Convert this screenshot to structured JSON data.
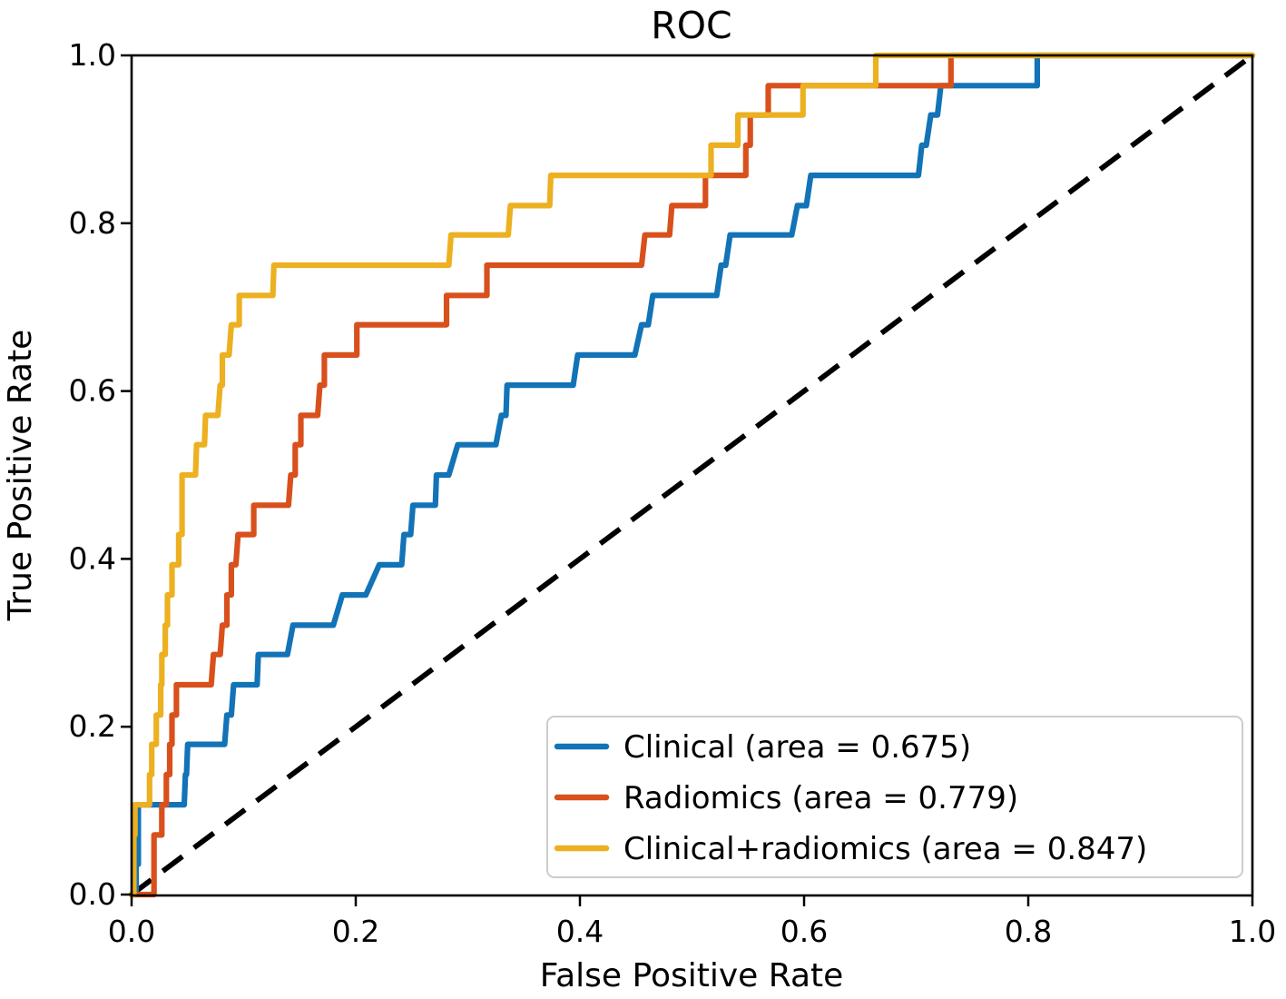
{
  "chart_data": {
    "type": "line",
    "subtype": "roc-step-curves",
    "title": "ROC",
    "xlabel": "False Positive Rate",
    "ylabel": "True Positive Rate",
    "xlim": [
      0.0,
      1.0
    ],
    "ylim": [
      0.0,
      1.0
    ],
    "grid": false,
    "legend_position": "lower right",
    "x_ticks": {
      "values": [
        0.0,
        0.2,
        0.4,
        0.6,
        0.8,
        1.0
      ],
      "labels": [
        "0.0",
        "0.2",
        "0.4",
        "0.6",
        "0.8",
        "1.0"
      ]
    },
    "y_ticks": {
      "values": [
        0.0,
        0.2,
        0.4,
        0.6,
        0.8,
        1.0
      ],
      "labels": [
        "0.0",
        "0.2",
        "0.4",
        "0.6",
        "0.8",
        "1.0"
      ]
    },
    "colors": {
      "axes": "#000000",
      "legend_border": "#cccccc",
      "reference": "#000000"
    },
    "reference_line": {
      "style": "dashed",
      "color": "#000000",
      "from": [
        0,
        0
      ],
      "to": [
        1,
        1
      ]
    },
    "series": [
      {
        "name": "Clinical (area = 0.675)",
        "auc": 0.675,
        "color": "#1273b7",
        "points": [
          [
            0,
            0
          ],
          [
            0.004,
            0
          ],
          [
            0.004,
            0.036
          ],
          [
            0.006,
            0.036
          ],
          [
            0.006,
            0.107
          ],
          [
            0.047,
            0.107
          ],
          [
            0.048,
            0.143
          ],
          [
            0.049,
            0.143
          ],
          [
            0.05,
            0.179
          ],
          [
            0.083,
            0.179
          ],
          [
            0.085,
            0.214
          ],
          [
            0.089,
            0.214
          ],
          [
            0.091,
            0.25
          ],
          [
            0.112,
            0.25
          ],
          [
            0.113,
            0.286
          ],
          [
            0.139,
            0.286
          ],
          [
            0.144,
            0.321
          ],
          [
            0.18,
            0.321
          ],
          [
            0.188,
            0.357
          ],
          [
            0.209,
            0.357
          ],
          [
            0.221,
            0.393
          ],
          [
            0.241,
            0.393
          ],
          [
            0.243,
            0.429
          ],
          [
            0.249,
            0.429
          ],
          [
            0.251,
            0.464
          ],
          [
            0.271,
            0.464
          ],
          [
            0.272,
            0.5
          ],
          [
            0.283,
            0.5
          ],
          [
            0.291,
            0.536
          ],
          [
            0.325,
            0.536
          ],
          [
            0.33,
            0.571
          ],
          [
            0.334,
            0.571
          ],
          [
            0.335,
            0.607
          ],
          [
            0.394,
            0.607
          ],
          [
            0.398,
            0.643
          ],
          [
            0.449,
            0.643
          ],
          [
            0.455,
            0.679
          ],
          [
            0.461,
            0.679
          ],
          [
            0.465,
            0.714
          ],
          [
            0.522,
            0.714
          ],
          [
            0.526,
            0.75
          ],
          [
            0.53,
            0.75
          ],
          [
            0.534,
            0.786
          ],
          [
            0.589,
            0.786
          ],
          [
            0.594,
            0.821
          ],
          [
            0.602,
            0.821
          ],
          [
            0.606,
            0.857
          ],
          [
            0.702,
            0.857
          ],
          [
            0.705,
            0.893
          ],
          [
            0.709,
            0.893
          ],
          [
            0.713,
            0.929
          ],
          [
            0.719,
            0.929
          ],
          [
            0.722,
            0.964
          ],
          [
            0.808,
            0.964
          ],
          [
            0.808,
            1
          ],
          [
            1,
            1
          ]
        ]
      },
      {
        "name": "Radiomics (area = 0.779)",
        "auc": 0.779,
        "color": "#d8501c",
        "points": [
          [
            0,
            0
          ],
          [
            0.02,
            0
          ],
          [
            0.02,
            0.071
          ],
          [
            0.027,
            0.071
          ],
          [
            0.027,
            0.107
          ],
          [
            0.031,
            0.107
          ],
          [
            0.031,
            0.143
          ],
          [
            0.034,
            0.143
          ],
          [
            0.034,
            0.179
          ],
          [
            0.036,
            0.179
          ],
          [
            0.036,
            0.214
          ],
          [
            0.04,
            0.214
          ],
          [
            0.04,
            0.25
          ],
          [
            0.071,
            0.25
          ],
          [
            0.073,
            0.286
          ],
          [
            0.079,
            0.286
          ],
          [
            0.081,
            0.321
          ],
          [
            0.085,
            0.321
          ],
          [
            0.085,
            0.357
          ],
          [
            0.089,
            0.357
          ],
          [
            0.089,
            0.393
          ],
          [
            0.093,
            0.393
          ],
          [
            0.095,
            0.429
          ],
          [
            0.109,
            0.429
          ],
          [
            0.109,
            0.464
          ],
          [
            0.14,
            0.464
          ],
          [
            0.142,
            0.5
          ],
          [
            0.146,
            0.5
          ],
          [
            0.146,
            0.536
          ],
          [
            0.151,
            0.536
          ],
          [
            0.151,
            0.571
          ],
          [
            0.166,
            0.571
          ],
          [
            0.168,
            0.607
          ],
          [
            0.172,
            0.607
          ],
          [
            0.172,
            0.643
          ],
          [
            0.201,
            0.643
          ],
          [
            0.201,
            0.679
          ],
          [
            0.281,
            0.679
          ],
          [
            0.281,
            0.714
          ],
          [
            0.317,
            0.714
          ],
          [
            0.317,
            0.75
          ],
          [
            0.455,
            0.75
          ],
          [
            0.458,
            0.786
          ],
          [
            0.48,
            0.786
          ],
          [
            0.482,
            0.821
          ],
          [
            0.512,
            0.821
          ],
          [
            0.512,
            0.857
          ],
          [
            0.548,
            0.857
          ],
          [
            0.548,
            0.893
          ],
          [
            0.552,
            0.893
          ],
          [
            0.552,
            0.929
          ],
          [
            0.568,
            0.929
          ],
          [
            0.568,
            0.964
          ],
          [
            0.731,
            0.964
          ],
          [
            0.731,
            1
          ],
          [
            1,
            1
          ]
        ]
      },
      {
        "name": "Clinical+radiomics (area = 0.847)",
        "auc": 0.847,
        "color": "#ecb021",
        "points": [
          [
            0,
            0
          ],
          [
            0.002,
            0
          ],
          [
            0.002,
            0.071
          ],
          [
            0.003,
            0.071
          ],
          [
            0.003,
            0.107
          ],
          [
            0.016,
            0.107
          ],
          [
            0.016,
            0.143
          ],
          [
            0.018,
            0.143
          ],
          [
            0.018,
            0.179
          ],
          [
            0.022,
            0.179
          ],
          [
            0.022,
            0.214
          ],
          [
            0.026,
            0.214
          ],
          [
            0.026,
            0.25
          ],
          [
            0.027,
            0.25
          ],
          [
            0.027,
            0.286
          ],
          [
            0.03,
            0.286
          ],
          [
            0.03,
            0.321
          ],
          [
            0.032,
            0.321
          ],
          [
            0.032,
            0.357
          ],
          [
            0.036,
            0.357
          ],
          [
            0.036,
            0.393
          ],
          [
            0.042,
            0.393
          ],
          [
            0.042,
            0.429
          ],
          [
            0.045,
            0.429
          ],
          [
            0.045,
            0.5
          ],
          [
            0.057,
            0.5
          ],
          [
            0.058,
            0.536
          ],
          [
            0.065,
            0.536
          ],
          [
            0.066,
            0.571
          ],
          [
            0.077,
            0.571
          ],
          [
            0.079,
            0.607
          ],
          [
            0.081,
            0.607
          ],
          [
            0.081,
            0.643
          ],
          [
            0.087,
            0.643
          ],
          [
            0.089,
            0.679
          ],
          [
            0.096,
            0.679
          ],
          [
            0.096,
            0.714
          ],
          [
            0.126,
            0.714
          ],
          [
            0.127,
            0.75
          ],
          [
            0.283,
            0.75
          ],
          [
            0.285,
            0.786
          ],
          [
            0.336,
            0.786
          ],
          [
            0.338,
            0.821
          ],
          [
            0.373,
            0.821
          ],
          [
            0.374,
            0.857
          ],
          [
            0.517,
            0.857
          ],
          [
            0.517,
            0.893
          ],
          [
            0.541,
            0.893
          ],
          [
            0.541,
            0.929
          ],
          [
            0.599,
            0.929
          ],
          [
            0.599,
            0.964
          ],
          [
            0.664,
            0.964
          ],
          [
            0.664,
            1
          ],
          [
            1,
            1
          ]
        ]
      }
    ]
  }
}
